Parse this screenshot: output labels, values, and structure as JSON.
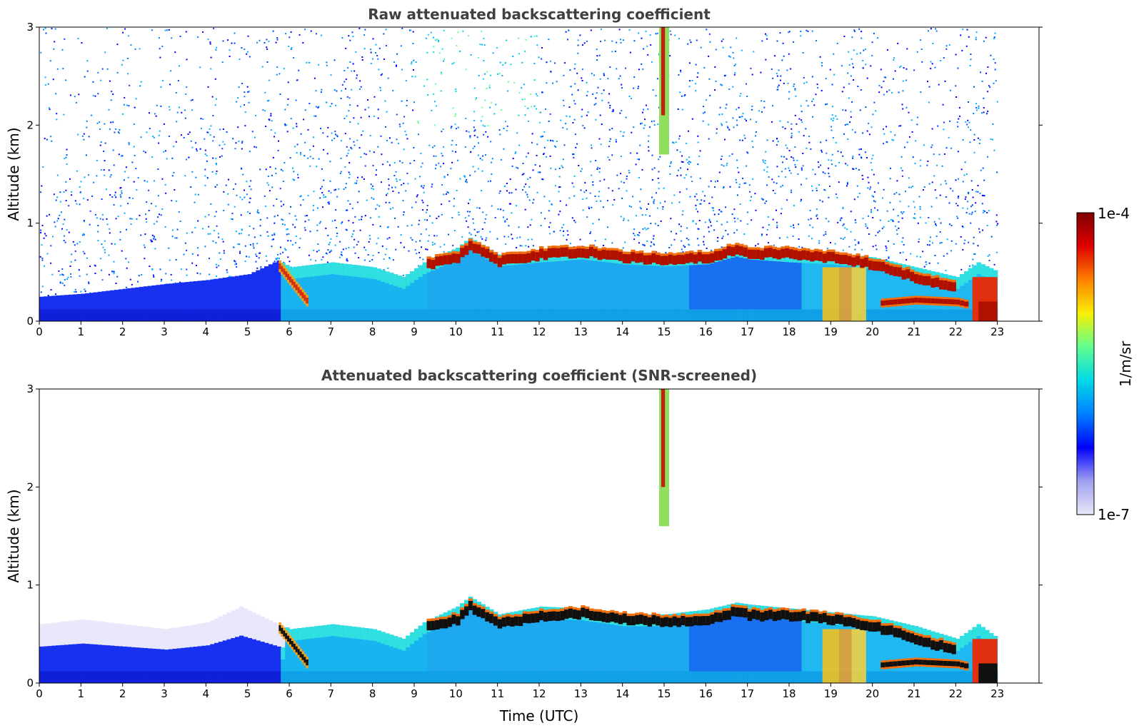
{
  "chart_data": [
    {
      "type": "heatmap",
      "title": "Raw attenuated backscattering coefficient",
      "xlabel": "",
      "ylabel": "Altitude (km)",
      "xlim": [
        0,
        24
      ],
      "ylim": [
        0,
        3
      ],
      "x_ticks": [
        0,
        1,
        2,
        3,
        4,
        5,
        6,
        7,
        8,
        9,
        10,
        11,
        12,
        13,
        14,
        15,
        16,
        17,
        18,
        19,
        20,
        21,
        22,
        23
      ],
      "y_ticks": [
        0,
        1,
        2,
        3
      ],
      "data_end_hour": 23,
      "noise_level": "high",
      "boundary_layer_top_km": [
        [
          0,
          0.25
        ],
        [
          1,
          0.28
        ],
        [
          2,
          0.33
        ],
        [
          3,
          0.38
        ],
        [
          4,
          0.42
        ],
        [
          5,
          0.48
        ],
        [
          5.7,
          0.62
        ],
        [
          6,
          0.55
        ],
        [
          7,
          0.6
        ],
        [
          8,
          0.55
        ],
        [
          8.7,
          0.45
        ],
        [
          9.2,
          0.6
        ],
        [
          10,
          0.75
        ],
        [
          10.3,
          0.85
        ],
        [
          11,
          0.68
        ],
        [
          12,
          0.72
        ],
        [
          13,
          0.75
        ],
        [
          14,
          0.7
        ],
        [
          15,
          0.68
        ],
        [
          16,
          0.7
        ],
        [
          16.7,
          0.78
        ],
        [
          17,
          0.75
        ],
        [
          18,
          0.72
        ],
        [
          19,
          0.7
        ],
        [
          20,
          0.65
        ],
        [
          21,
          0.55
        ],
        [
          22,
          0.45
        ],
        [
          22.5,
          0.6
        ],
        [
          23,
          0.5
        ]
      ],
      "cloud_layer_km": [
        [
          9.3,
          0.55
        ],
        [
          10,
          0.62
        ],
        [
          10.3,
          0.75
        ],
        [
          11,
          0.58
        ],
        [
          12,
          0.65
        ],
        [
          13,
          0.68
        ],
        [
          14,
          0.62
        ],
        [
          15,
          0.6
        ],
        [
          16,
          0.62
        ],
        [
          16.7,
          0.7
        ],
        [
          17,
          0.66
        ],
        [
          18,
          0.66
        ],
        [
          19,
          0.62
        ],
        [
          20,
          0.55
        ],
        [
          21,
          0.42
        ],
        [
          22,
          0.3
        ]
      ],
      "lower_cloud_km": [
        [
          20.2,
          0.17
        ],
        [
          21,
          0.2
        ],
        [
          22,
          0.18
        ],
        [
          22.3,
          0.15
        ]
      ],
      "plume_km": {
        "start_hour": 5.75,
        "end_hour": 6.4,
        "top": 0.55,
        "bottom": 0.2
      },
      "high_plume": {
        "hour": 15,
        "bottom_km": 1.7,
        "top_km": 3.0
      }
    },
    {
      "type": "heatmap",
      "title": "Attenuated backscattering coefficient (SNR-screened)",
      "xlabel": "Time (UTC)",
      "ylabel": "Altitude (km)",
      "xlim": [
        0,
        24
      ],
      "ylim": [
        0,
        3
      ],
      "x_ticks": [
        0,
        1,
        2,
        3,
        4,
        5,
        6,
        7,
        8,
        9,
        10,
        11,
        12,
        13,
        14,
        15,
        16,
        17,
        18,
        19,
        20,
        21,
        22,
        23
      ],
      "y_ticks": [
        0,
        1,
        2,
        3
      ],
      "data_end_hour": 23,
      "noise_level": "none",
      "boundary_layer_top_km": [
        [
          0,
          0.6
        ],
        [
          1,
          0.65
        ],
        [
          2,
          0.6
        ],
        [
          3,
          0.55
        ],
        [
          4,
          0.62
        ],
        [
          4.8,
          0.78
        ],
        [
          5.7,
          0.6
        ],
        [
          6,
          0.55
        ],
        [
          7,
          0.6
        ],
        [
          8,
          0.55
        ],
        [
          8.7,
          0.45
        ],
        [
          9.2,
          0.62
        ],
        [
          10,
          0.78
        ],
        [
          10.3,
          0.88
        ],
        [
          11,
          0.7
        ],
        [
          12,
          0.78
        ],
        [
          13,
          0.76
        ],
        [
          14,
          0.7
        ],
        [
          15,
          0.7
        ],
        [
          16,
          0.75
        ],
        [
          16.7,
          0.82
        ],
        [
          17,
          0.8
        ],
        [
          18,
          0.76
        ],
        [
          19,
          0.72
        ],
        [
          20,
          0.68
        ],
        [
          21,
          0.58
        ],
        [
          22,
          0.45
        ],
        [
          22.5,
          0.6
        ],
        [
          23,
          0.45
        ]
      ],
      "cloud_layer_km": [
        [
          9.3,
          0.55
        ],
        [
          10,
          0.62
        ],
        [
          10.3,
          0.75
        ],
        [
          11,
          0.58
        ],
        [
          12,
          0.65
        ],
        [
          13,
          0.68
        ],
        [
          14,
          0.62
        ],
        [
          15,
          0.6
        ],
        [
          16,
          0.62
        ],
        [
          16.7,
          0.7
        ],
        [
          17,
          0.66
        ],
        [
          18,
          0.66
        ],
        [
          19,
          0.62
        ],
        [
          20,
          0.55
        ],
        [
          21,
          0.42
        ],
        [
          22,
          0.3
        ]
      ],
      "lower_cloud_km": [
        [
          20.2,
          0.17
        ],
        [
          21,
          0.2
        ],
        [
          22,
          0.18
        ],
        [
          22.3,
          0.15
        ]
      ],
      "plume_km": {
        "start_hour": 5.75,
        "end_hour": 6.4,
        "top": 0.55,
        "bottom": 0.2
      },
      "high_plume": {
        "hour": 15,
        "bottom_km": 1.6,
        "top_km": 3.0
      }
    }
  ],
  "colorbar": {
    "label": "1/m/sr",
    "max_label": "1e-4",
    "min_label": "1e-7",
    "scale": "log",
    "colormap": [
      "#e8e8f8",
      "#a0a0f0",
      "#0000ff",
      "#0080ff",
      "#00d8e8",
      "#60ff90",
      "#f8f000",
      "#ff8000",
      "#e00000",
      "#800000"
    ]
  }
}
